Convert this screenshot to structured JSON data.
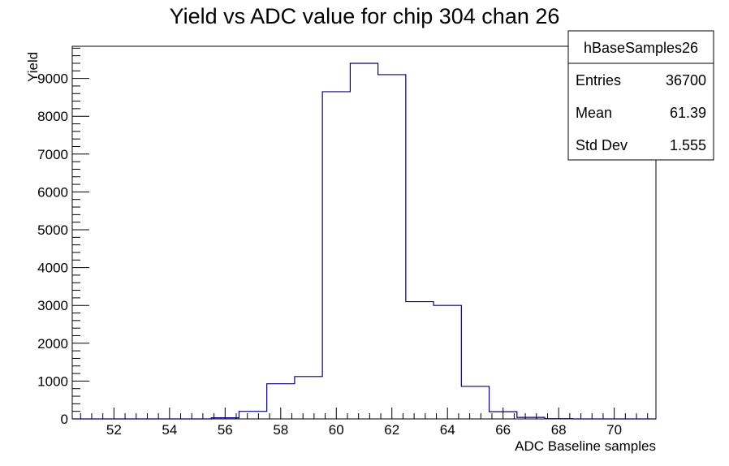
{
  "chart_data": {
    "type": "histogram",
    "title": "Yield vs ADC value for chip 304 chan 26",
    "xlabel": "ADC Baseline samples",
    "ylabel": "Yield",
    "xlim": [
      50.5,
      71.5
    ],
    "ylim": [
      0,
      9850
    ],
    "bin_width": 1,
    "bins": [
      {
        "x": 51,
        "value": 0
      },
      {
        "x": 52,
        "value": 0
      },
      {
        "x": 53,
        "value": 0
      },
      {
        "x": 54,
        "value": 0
      },
      {
        "x": 55,
        "value": 0
      },
      {
        "x": 56,
        "value": 30
      },
      {
        "x": 57,
        "value": 200
      },
      {
        "x": 58,
        "value": 930
      },
      {
        "x": 59,
        "value": 1120
      },
      {
        "x": 60,
        "value": 8650
      },
      {
        "x": 61,
        "value": 9400
      },
      {
        "x": 62,
        "value": 9100
      },
      {
        "x": 63,
        "value": 3100
      },
      {
        "x": 64,
        "value": 3000
      },
      {
        "x": 65,
        "value": 860
      },
      {
        "x": 66,
        "value": 190
      },
      {
        "x": 67,
        "value": 40
      },
      {
        "x": 68,
        "value": 5
      },
      {
        "x": 69,
        "value": 0
      },
      {
        "x": 70,
        "value": 0
      },
      {
        "x": 71,
        "value": 0
      }
    ],
    "x_ticks": [
      52,
      54,
      56,
      58,
      60,
      62,
      64,
      66,
      68,
      70
    ],
    "y_ticks": [
      0,
      1000,
      2000,
      3000,
      4000,
      5000,
      6000,
      7000,
      8000,
      9000
    ],
    "line_color": "#000080",
    "grid": false,
    "legend": "none",
    "stats_box": {
      "name": "hBaseSamples26",
      "placement": "top-right",
      "rows": [
        {
          "label": "Entries",
          "value": "36700"
        },
        {
          "label": "Mean",
          "value": "61.39"
        },
        {
          "label": "Std Dev",
          "value": "1.555"
        }
      ]
    }
  }
}
